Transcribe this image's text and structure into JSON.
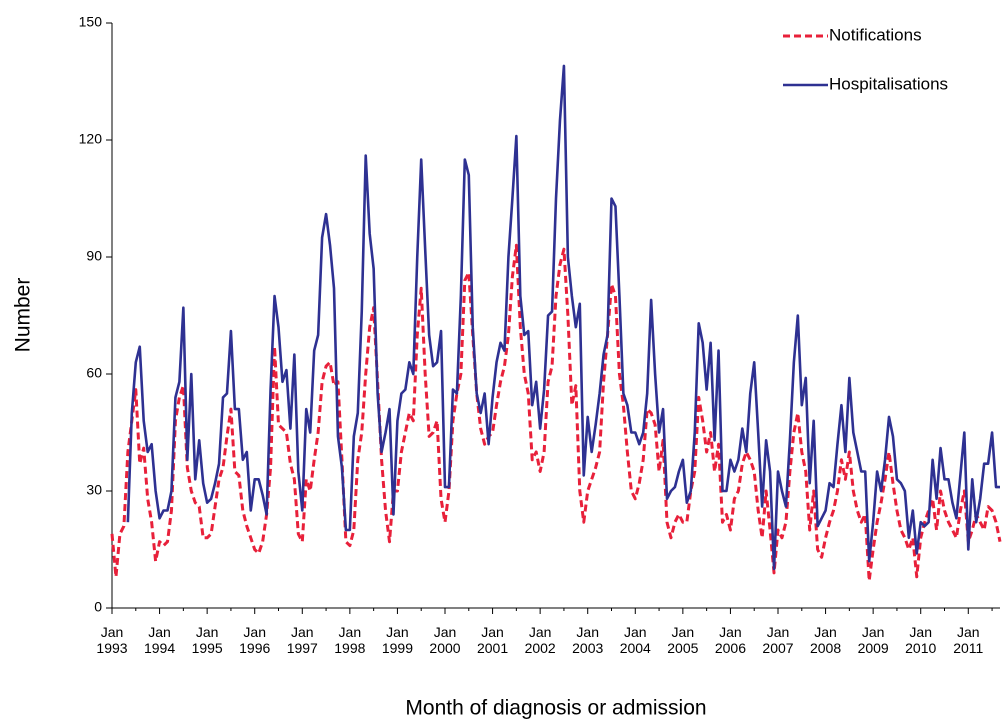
{
  "chart_data": {
    "type": "line",
    "x_label": "Month of diagnosis or admission",
    "y_label": "Number",
    "ylim": [
      0,
      150
    ],
    "yticks": [
      0,
      30,
      60,
      90,
      120,
      150
    ],
    "grid": false,
    "legend": "top-right",
    "categories": [
      "Jan 1993",
      null,
      null,
      null,
      null,
      null,
      null,
      null,
      null,
      null,
      null,
      null,
      "Jan 1994",
      null,
      null,
      null,
      null,
      null,
      null,
      null,
      null,
      null,
      null,
      null,
      "Jan 1995",
      null,
      null,
      null,
      null,
      null,
      null,
      null,
      null,
      null,
      null,
      null,
      "Jan 1996",
      null,
      null,
      null,
      null,
      null,
      null,
      null,
      null,
      null,
      null,
      null,
      "Jan 1997",
      null,
      null,
      null,
      null,
      null,
      null,
      null,
      null,
      null,
      null,
      null,
      "Jan 1998",
      null,
      null,
      null,
      null,
      null,
      null,
      null,
      null,
      null,
      null,
      null,
      "Jan 1999",
      null,
      null,
      null,
      null,
      null,
      null,
      null,
      null,
      null,
      null,
      null,
      "Jan 2000",
      null,
      null,
      null,
      null,
      null,
      null,
      null,
      null,
      null,
      null,
      null,
      "Jan 2001",
      null,
      null,
      null,
      null,
      null,
      null,
      null,
      null,
      null,
      null,
      null,
      "Jan 2002",
      null,
      null,
      null,
      null,
      null,
      null,
      null,
      null,
      null,
      null,
      null,
      "Jan 2003",
      null,
      null,
      null,
      null,
      null,
      null,
      null,
      null,
      null,
      null,
      null,
      "Jan 2004",
      null,
      null,
      null,
      null,
      null,
      null,
      null,
      null,
      null,
      null,
      null,
      "Jan 2005",
      null,
      null,
      null,
      null,
      null,
      null,
      null,
      null,
      null,
      null,
      null,
      "Jan 2006",
      null,
      null,
      null,
      null,
      null,
      null,
      null,
      null,
      null,
      null,
      null,
      "Jan 2007",
      null,
      null,
      null,
      null,
      null,
      null,
      null,
      null,
      null,
      null,
      null,
      "Jan 2008",
      null,
      null,
      null,
      null,
      null,
      null,
      null,
      null,
      null,
      null,
      null,
      "Jan 2009",
      null,
      null,
      null,
      null,
      null,
      null,
      null,
      null,
      null,
      null,
      null,
      "Jan 2010",
      null,
      null,
      null,
      null,
      null,
      null,
      null,
      null,
      null,
      null,
      null,
      "Jan 2011",
      null,
      null,
      null,
      null,
      null,
      null,
      null,
      null
    ],
    "series": [
      {
        "name": "Notifications",
        "color": "#e8203a",
        "dash": true,
        "values": [
          19,
          8,
          19,
          21,
          40,
          48,
          56,
          37,
          41,
          28,
          22,
          12,
          17,
          16,
          17,
          25,
          48,
          54,
          57,
          36,
          30,
          27,
          26,
          18,
          18,
          19,
          26,
          33,
          36,
          44,
          51,
          35,
          34,
          25,
          21,
          18,
          15,
          14,
          17,
          24,
          36,
          67,
          47,
          46,
          45,
          37,
          33,
          19,
          17,
          33,
          30,
          38,
          45,
          58,
          62,
          63,
          57,
          58,
          38,
          17,
          16,
          20,
          38,
          45,
          60,
          72,
          77,
          58,
          38,
          25,
          17,
          30,
          30,
          40,
          45,
          50,
          48,
          70,
          82,
          60,
          44,
          45,
          48,
          28,
          22,
          30,
          48,
          55,
          60,
          84,
          86,
          70,
          55,
          46,
          42,
          44,
          45,
          52,
          58,
          62,
          70,
          85,
          93,
          72,
          60,
          55,
          38,
          40,
          35,
          40,
          58,
          62,
          80,
          88,
          92,
          75,
          52,
          57,
          30,
          22,
          30,
          33,
          36,
          40,
          58,
          70,
          83,
          80,
          60,
          52,
          40,
          30,
          28,
          32,
          38,
          51,
          50,
          47,
          35,
          43,
          22,
          18,
          22,
          24,
          22,
          22,
          30,
          35,
          54,
          48,
          40,
          45,
          35,
          42,
          22,
          24,
          20,
          28,
          30,
          37,
          40,
          38,
          35,
          25,
          18,
          30,
          20,
          9,
          20,
          18,
          22,
          35,
          45,
          50,
          40,
          35,
          20,
          30,
          15,
          13,
          18,
          22,
          25,
          30,
          38,
          33,
          40,
          30,
          25,
          22,
          24,
          7,
          15,
          22,
          27,
          33,
          40,
          32,
          25,
          20,
          18,
          15,
          18,
          8,
          18,
          22,
          25,
          28,
          20,
          30,
          25,
          22,
          20,
          18,
          25,
          30,
          17,
          20,
          24,
          22,
          20,
          26,
          25,
          22,
          17
        ]
      },
      {
        "name": "Hospitalisations",
        "color": "#2e3192",
        "dash": false,
        "values": [
          null,
          null,
          null,
          null,
          22,
          50,
          63,
          67,
          48,
          40,
          42,
          30,
          23,
          25,
          25,
          30,
          54,
          58,
          77,
          38,
          60,
          33,
          43,
          32,
          27,
          28,
          32,
          37,
          54,
          55,
          71,
          51,
          51,
          38,
          40,
          25,
          33,
          33,
          29,
          24,
          56,
          80,
          72,
          58,
          61,
          46,
          65,
          35,
          25,
          51,
          45,
          66,
          70,
          95,
          101,
          93,
          82,
          44,
          36,
          20,
          20,
          44,
          50,
          76,
          116,
          96,
          87,
          55,
          40,
          45,
          51,
          24,
          48,
          55,
          56,
          63,
          60,
          90,
          115,
          92,
          70,
          62,
          63,
          71,
          31,
          31,
          56,
          55,
          80,
          115,
          111,
          72,
          55,
          50,
          55,
          42,
          54,
          63,
          68,
          66,
          90,
          105,
          121,
          80,
          70,
          71,
          52,
          58,
          46,
          56,
          75,
          76,
          105,
          125,
          139,
          90,
          80,
          72,
          78,
          34,
          49,
          40,
          47,
          55,
          65,
          70,
          105,
          103,
          80,
          55,
          52,
          45,
          45,
          42,
          45,
          55,
          79,
          60,
          45,
          51,
          28,
          30,
          31,
          35,
          38,
          27,
          30,
          45,
          73,
          68,
          56,
          68,
          43,
          66,
          30,
          30,
          38,
          35,
          38,
          46,
          40,
          55,
          63,
          45,
          26,
          43,
          35,
          10,
          35,
          30,
          26,
          43,
          63,
          75,
          52,
          59,
          32,
          48,
          21,
          23,
          25,
          32,
          31,
          42,
          52,
          40,
          59,
          45,
          40,
          35,
          35,
          12,
          22,
          35,
          30,
          38,
          49,
          44,
          33,
          32,
          30,
          18,
          25,
          14,
          22,
          21,
          22,
          38,
          28,
          41,
          33,
          33,
          27,
          23,
          34,
          45,
          15,
          33,
          22,
          28,
          37,
          37,
          45,
          31,
          31
        ]
      }
    ]
  }
}
